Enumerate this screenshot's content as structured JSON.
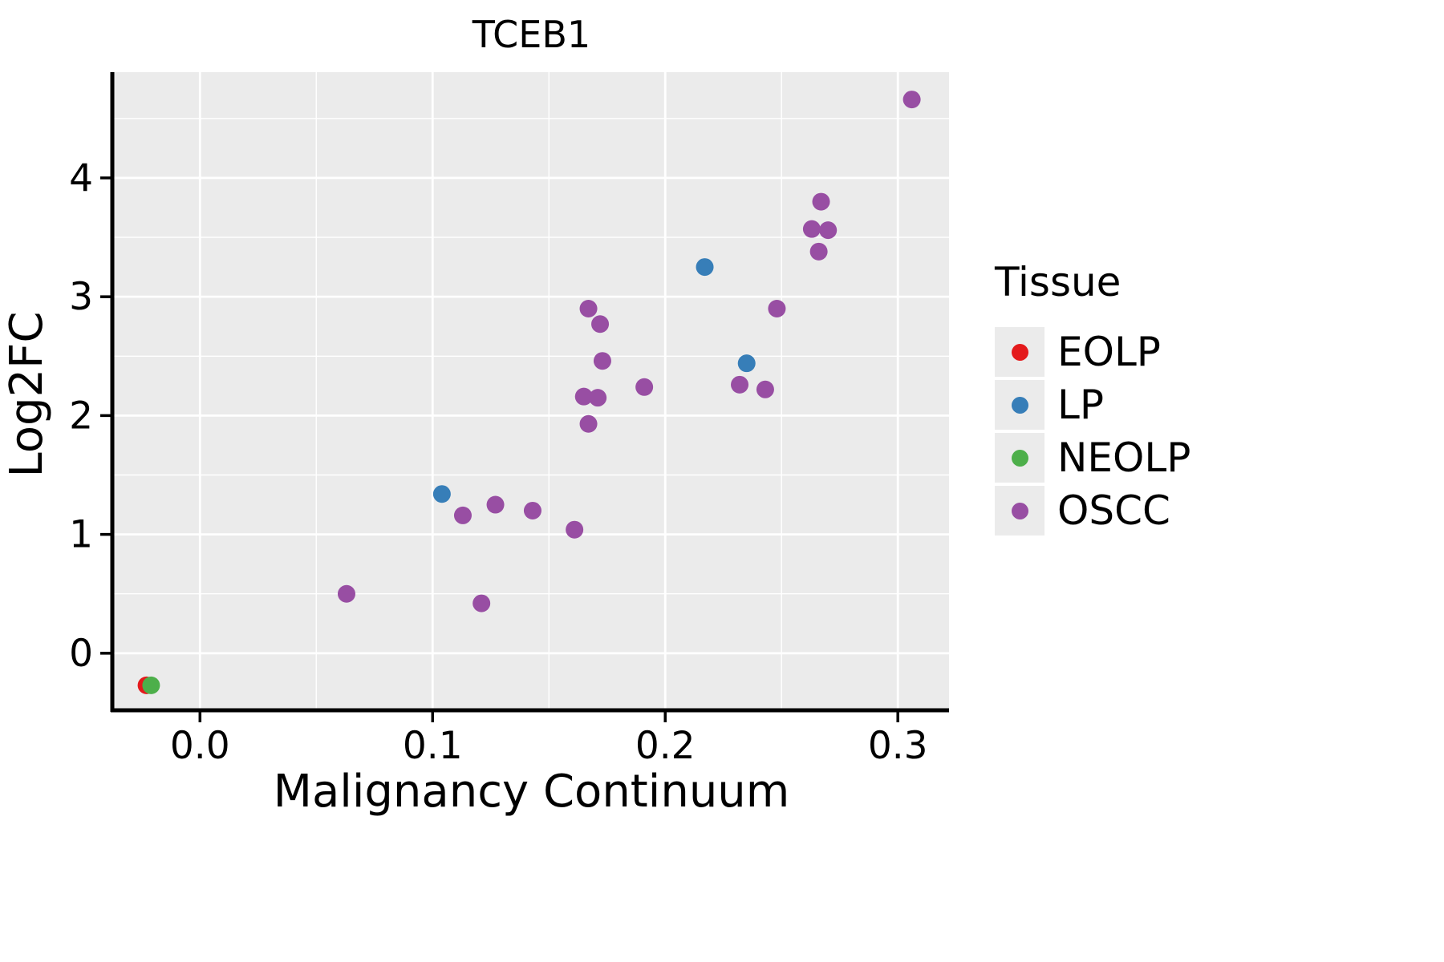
{
  "chart_data": {
    "type": "scatter",
    "title": "TCEB1",
    "xlabel": "Malignancy Continuum",
    "ylabel": "Log2FC",
    "legend_title": "Tissue",
    "legend_position": "right",
    "grid": true,
    "xlim": [
      -0.037,
      0.322
    ],
    "ylim": [
      -0.48,
      4.89
    ],
    "xticks": [
      0,
      0.1,
      0.2,
      0.3
    ],
    "xtick_labels": [
      "0.0",
      "0.1",
      "0.2",
      "0.3"
    ],
    "yticks": [
      0,
      1,
      2,
      3,
      4
    ],
    "ytick_labels": [
      "0",
      "1",
      "2",
      "3",
      "4"
    ],
    "x_minor": [
      0.05,
      0.15,
      0.25
    ],
    "y_minor": [
      0.5,
      1.5,
      2.5,
      3.5,
      4.5
    ],
    "series": [
      {
        "name": "EOLP",
        "color": "#E41A1C",
        "points": [
          [
            -0.023,
            -0.27
          ]
        ]
      },
      {
        "name": "LP",
        "color": "#377EB8",
        "points": [
          [
            0.104,
            1.34
          ],
          [
            0.217,
            3.25
          ],
          [
            0.235,
            2.44
          ]
        ]
      },
      {
        "name": "NEOLP",
        "color": "#4DAF4A",
        "points": [
          [
            -0.021,
            -0.27
          ]
        ]
      },
      {
        "name": "OSCC",
        "color": "#984EA3",
        "points": [
          [
            0.063,
            0.5
          ],
          [
            0.121,
            0.42
          ],
          [
            0.113,
            1.16
          ],
          [
            0.127,
            1.25
          ],
          [
            0.143,
            1.2
          ],
          [
            0.161,
            1.04
          ],
          [
            0.167,
            1.93
          ],
          [
            0.165,
            2.16
          ],
          [
            0.171,
            2.15
          ],
          [
            0.173,
            2.46
          ],
          [
            0.172,
            2.77
          ],
          [
            0.167,
            2.9
          ],
          [
            0.191,
            2.24
          ],
          [
            0.232,
            2.26
          ],
          [
            0.243,
            2.22
          ],
          [
            0.248,
            2.9
          ],
          [
            0.266,
            3.38
          ],
          [
            0.263,
            3.57
          ],
          [
            0.27,
            3.56
          ],
          [
            0.267,
            3.8
          ],
          [
            0.306,
            4.66
          ]
        ]
      }
    ],
    "colors": {
      "panel_bg": "#EBEBEB",
      "gridline": "#FFFFFF",
      "axis": "#000000",
      "tick_text": "#000000",
      "legend_key_bg": "#EBEBEB"
    }
  }
}
